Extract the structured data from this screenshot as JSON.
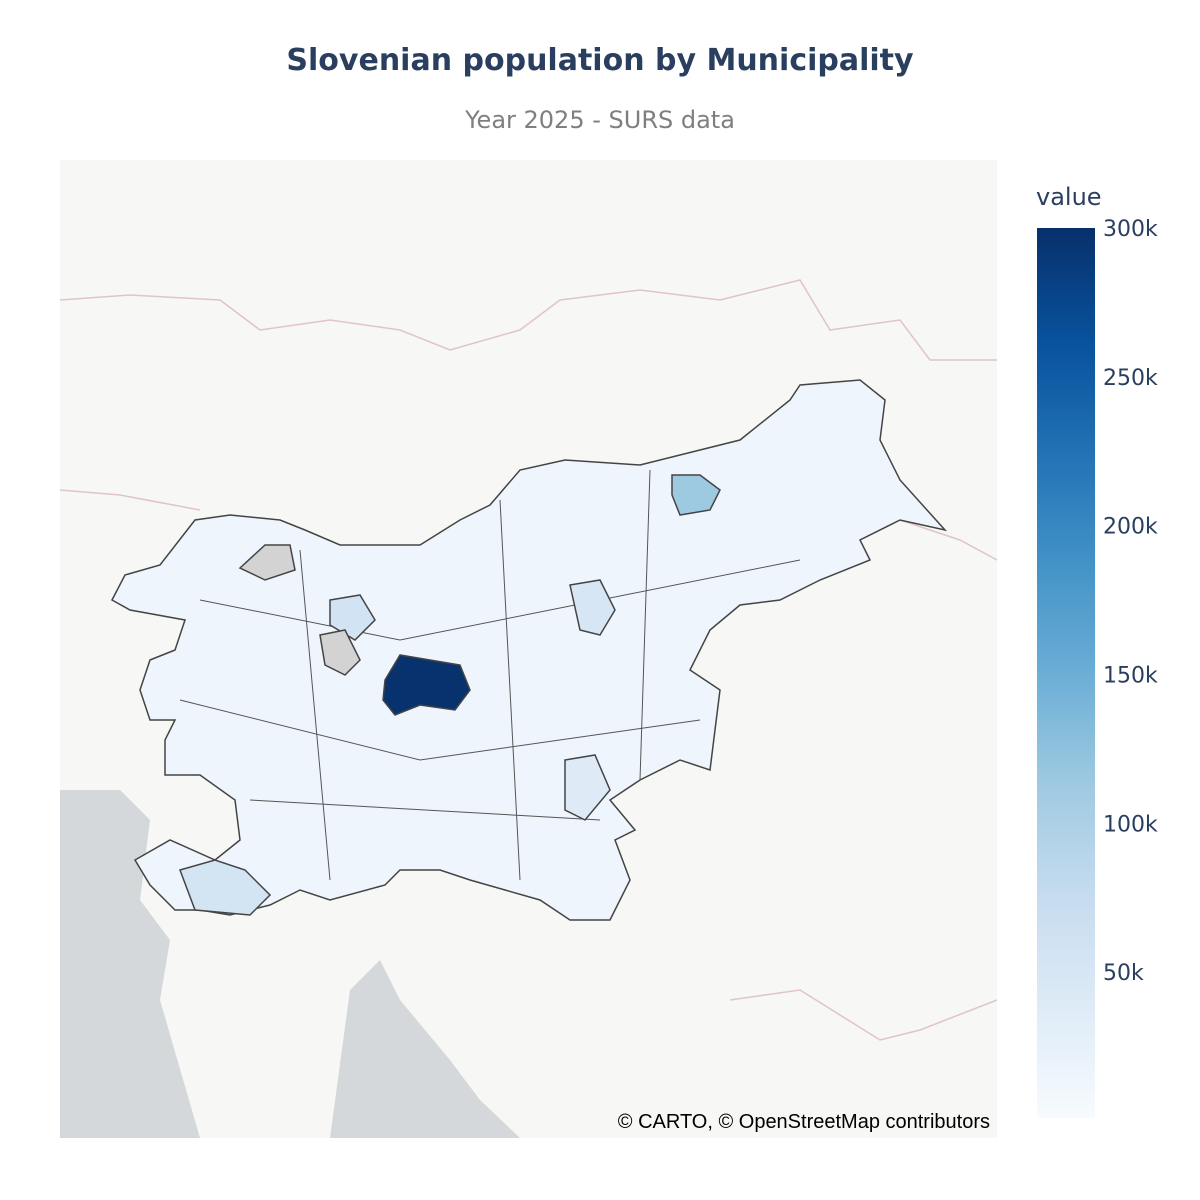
{
  "chart_data": {
    "type": "choropleth",
    "title": "Slovenian population by Municipality",
    "subtitle": "Year 2025 - SURS data",
    "colorbar_title": "value",
    "values": [
      298000,
      113000,
      38000,
      55000,
      57000,
      50000,
      null,
      null
    ],
    "missing_color": "#d3d3d3",
    "colorscale": [
      "#f7fbff",
      "#deebf7",
      "#c6dbef",
      "#9ecae1",
      "#6baed6",
      "#4292c6",
      "#2171b5",
      "#08519c",
      "#08306b"
    ],
    "zlim": [
      1000,
      300000
    ],
    "zticks": [
      {
        "value": 50000,
        "label": "50k"
      },
      {
        "value": 100000,
        "label": "100k"
      },
      {
        "value": 150000,
        "label": "150k"
      },
      {
        "value": 200000,
        "label": "200k"
      },
      {
        "value": 250000,
        "label": "250k"
      },
      {
        "value": 300000,
        "label": "300k"
      }
    ],
    "attribution": "© CARTO, © OpenStreetMap contributors"
  }
}
